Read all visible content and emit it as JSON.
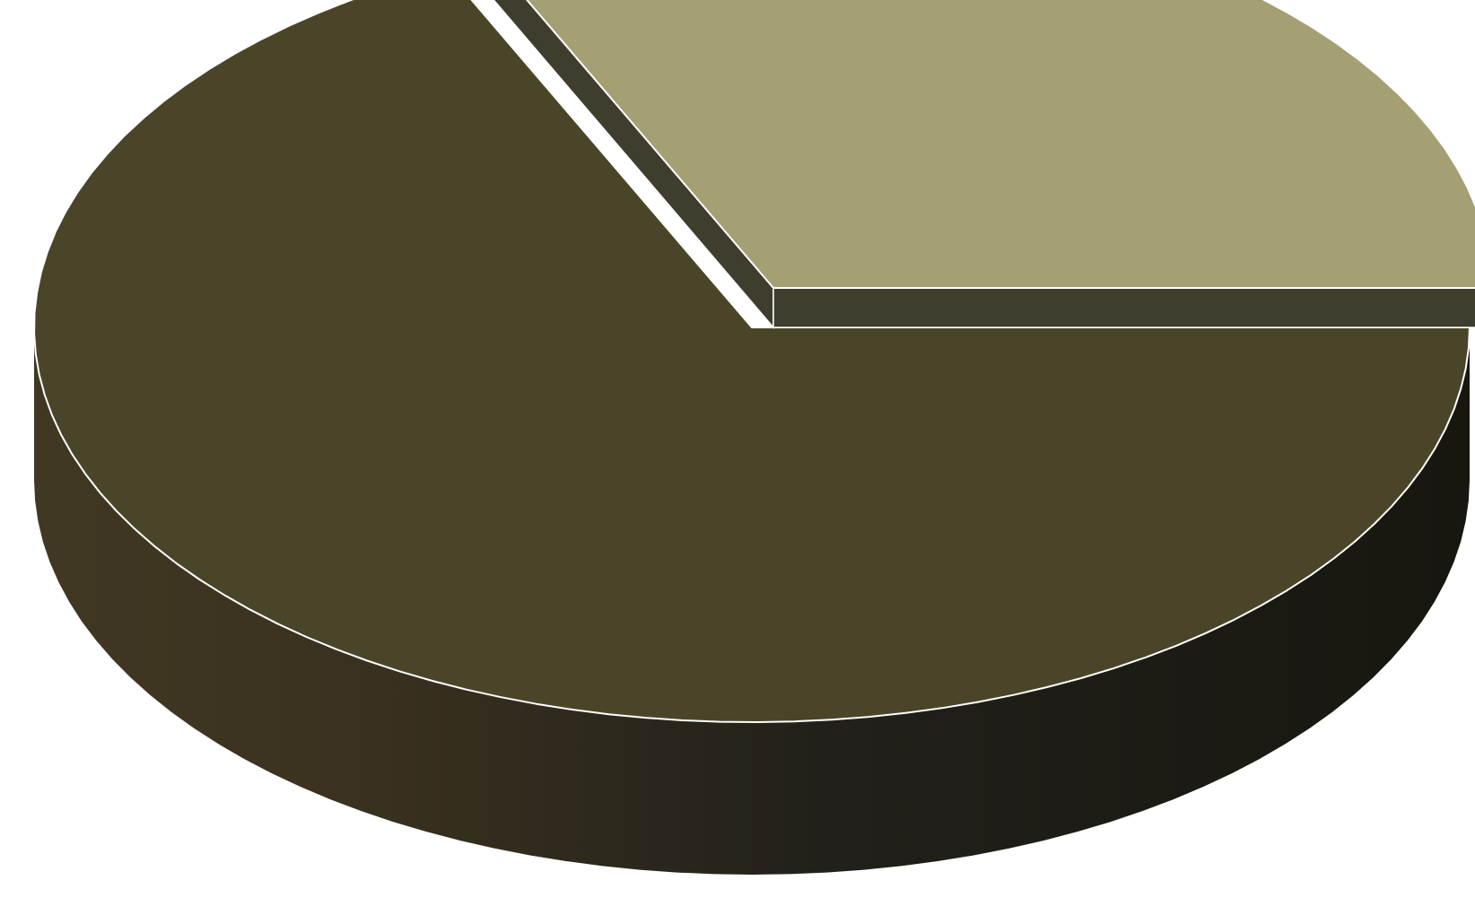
{
  "chart_data": {
    "type": "pie",
    "style": "3d-exploded",
    "title": "",
    "series": [
      {
        "values": [
          32,
          68
        ],
        "colors": [
          "#a59f74",
          "#4a4529"
        ],
        "side_colors": [
          "#3f3e2e",
          "#2c2a1d"
        ],
        "exploded": [
          true,
          false
        ]
      }
    ],
    "legend": "none",
    "data_labels": "none"
  }
}
